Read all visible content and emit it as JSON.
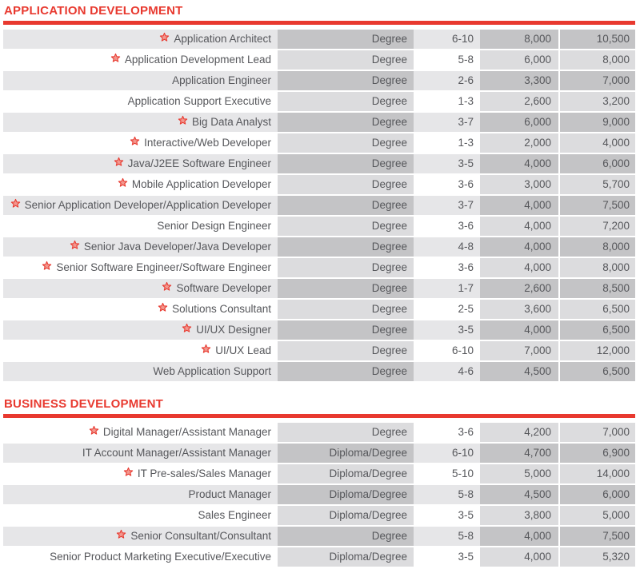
{
  "accent_color": "#e8392f",
  "star_icon_meaning": "featured-role",
  "sections": [
    {
      "title": "APPLICATION DEVELOPMENT",
      "rows": [
        {
          "starred": true,
          "role": "Application Architect",
          "qualification": "Degree",
          "experience": "6-10",
          "salary_min": "8,000",
          "salary_max": "10,500"
        },
        {
          "starred": true,
          "role": "Application Development Lead",
          "qualification": "Degree",
          "experience": "5-8",
          "salary_min": "6,000",
          "salary_max": "8,000"
        },
        {
          "starred": false,
          "role": "Application Engineer",
          "qualification": "Degree",
          "experience": "2-6",
          "salary_min": "3,300",
          "salary_max": "7,000"
        },
        {
          "starred": false,
          "role": "Application Support Executive",
          "qualification": "Degree",
          "experience": "1-3",
          "salary_min": "2,600",
          "salary_max": "3,200"
        },
        {
          "starred": true,
          "role": "Big Data Analyst",
          "qualification": "Degree",
          "experience": "3-7",
          "salary_min": "6,000",
          "salary_max": "9,000"
        },
        {
          "starred": true,
          "role": "Interactive/Web Developer",
          "qualification": "Degree",
          "experience": "1-3",
          "salary_min": "2,000",
          "salary_max": "4,000"
        },
        {
          "starred": true,
          "role": "Java/J2EE Software Engineer",
          "qualification": "Degree",
          "experience": "3-5",
          "salary_min": "4,000",
          "salary_max": "6,000"
        },
        {
          "starred": true,
          "role": "Mobile Application Developer",
          "qualification": "Degree",
          "experience": "3-6",
          "salary_min": "3,000",
          "salary_max": "5,700"
        },
        {
          "starred": true,
          "role": "Senior Application Developer/Application Developer",
          "qualification": "Degree",
          "experience": "3-7",
          "salary_min": "4,000",
          "salary_max": "7,500"
        },
        {
          "starred": false,
          "role": "Senior Design Engineer",
          "qualification": "Degree",
          "experience": "3-6",
          "salary_min": "4,000",
          "salary_max": "7,200"
        },
        {
          "starred": true,
          "role": "Senior Java Developer/Java Developer",
          "qualification": "Degree",
          "experience": "4-8",
          "salary_min": "4,000",
          "salary_max": "8,000"
        },
        {
          "starred": true,
          "role": "Senior Software Engineer/Software Engineer",
          "qualification": "Degree",
          "experience": "3-6",
          "salary_min": "4,000",
          "salary_max": "8,000"
        },
        {
          "starred": true,
          "role": "Software Developer",
          "qualification": "Degree",
          "experience": "1-7",
          "salary_min": "2,600",
          "salary_max": "8,500"
        },
        {
          "starred": true,
          "role": "Solutions Consultant",
          "qualification": "Degree",
          "experience": "2-5",
          "salary_min": "3,600",
          "salary_max": "6,500"
        },
        {
          "starred": true,
          "role": "UI/UX Designer",
          "qualification": "Degree",
          "experience": "3-5",
          "salary_min": "4,000",
          "salary_max": "6,500"
        },
        {
          "starred": true,
          "role": "UI/UX Lead",
          "qualification": "Degree",
          "experience": "6-10",
          "salary_min": "7,000",
          "salary_max": "12,000"
        },
        {
          "starred": false,
          "role": "Web Application Support",
          "qualification": "Degree",
          "experience": "4-6",
          "salary_min": "4,500",
          "salary_max": "6,500"
        }
      ]
    },
    {
      "title": "BUSINESS DEVELOPMENT",
      "rows": [
        {
          "starred": true,
          "role": "Digital Manager/Assistant Manager",
          "qualification": "Degree",
          "experience": "3-6",
          "salary_min": "4,200",
          "salary_max": "7,000"
        },
        {
          "starred": false,
          "role": "IT Account Manager/Assistant Manager",
          "qualification": "Diploma/Degree",
          "experience": "6-10",
          "salary_min": "4,700",
          "salary_max": "6,900"
        },
        {
          "starred": true,
          "role": "IT Pre-sales/Sales Manager",
          "qualification": "Diploma/Degree",
          "experience": "5-10",
          "salary_min": "5,000",
          "salary_max": "14,000"
        },
        {
          "starred": false,
          "role": "Product Manager",
          "qualification": "Diploma/Degree",
          "experience": "5-8",
          "salary_min": "4,500",
          "salary_max": "6,000"
        },
        {
          "starred": false,
          "role": "Sales Engineer",
          "qualification": "Diploma/Degree",
          "experience": "3-5",
          "salary_min": "3,800",
          "salary_max": "5,000"
        },
        {
          "starred": true,
          "role": "Senior Consultant/Consultant",
          "qualification": "Degree",
          "experience": "5-8",
          "salary_min": "4,000",
          "salary_max": "7,500"
        },
        {
          "starred": false,
          "role": "Senior Product Marketing Executive/Executive",
          "qualification": "Diploma/Degree",
          "experience": "3-5",
          "salary_min": "4,000",
          "salary_max": "5,320"
        }
      ]
    }
  ]
}
